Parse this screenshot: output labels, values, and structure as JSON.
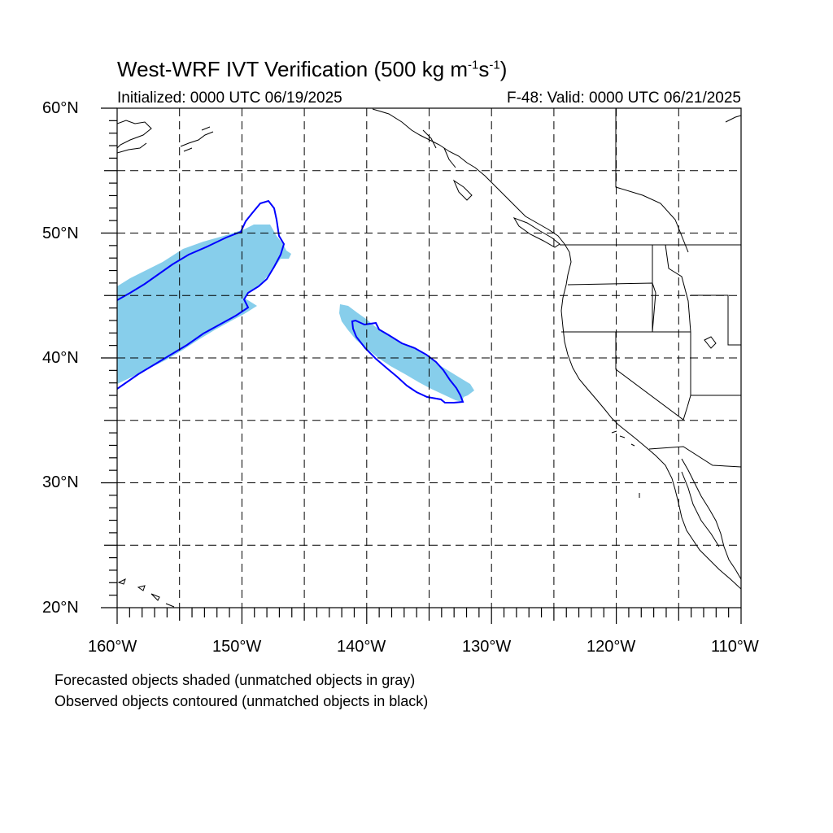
{
  "title": {
    "main": "West-WRF IVT Verification (500 kg m",
    "exp1": "-1",
    "mid": "s",
    "exp2": "-1",
    "end": ")"
  },
  "subtitle": {
    "left": "Initialized: 0000 UTC 06/19/2025",
    "right": "F-48: Valid: 0000 UTC 06/21/2025"
  },
  "map": {
    "lon_range": [
      -160,
      -110
    ],
    "lat_range": [
      20,
      60
    ],
    "grid_lon": [
      -155,
      -150,
      -145,
      -140,
      -135,
      -130,
      -125,
      -120,
      -115
    ],
    "grid_lat": [
      25,
      30,
      35,
      40,
      45,
      50,
      55
    ],
    "lat_labels": [
      "60°N",
      "50°N",
      "40°N",
      "30°N",
      "20°N"
    ],
    "lon_labels": [
      "160°W",
      "150°W",
      "140°W",
      "130°W",
      "120°W",
      "110°W"
    ],
    "forecast_fill_color": "#87ceeb",
    "observed_contour_color": "#0000ff",
    "coast_color": "#000000",
    "grid": true
  },
  "notes": {
    "line1": "Forecasted objects shaded (unmatched objects in gray)",
    "line2": "Observed objects contoured (unmatched objects in black)"
  }
}
